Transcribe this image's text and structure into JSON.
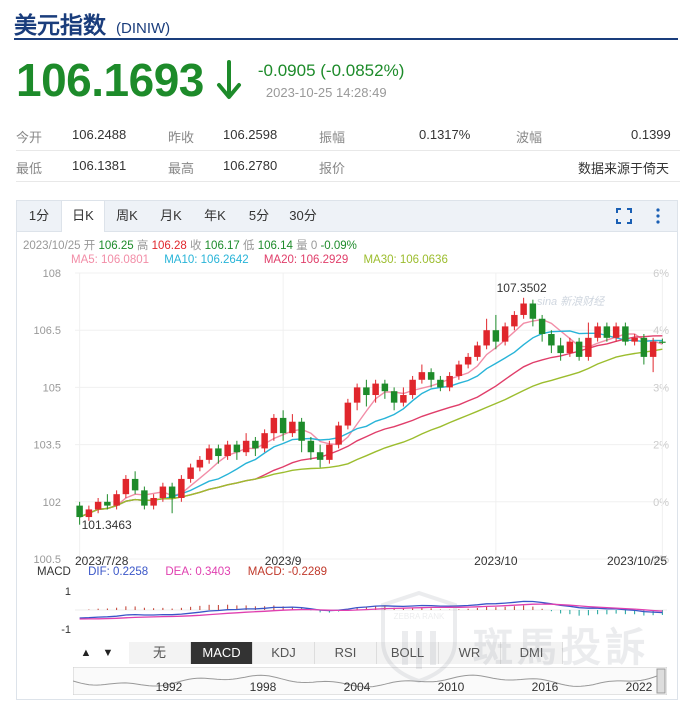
{
  "header": {
    "title": "美元指数",
    "code": "(DINIW)"
  },
  "quote": {
    "price": "106.1693",
    "change": "-0.0905 (-0.0852%)",
    "timestamp": "2023-10-25 14:28:49",
    "direction": "down",
    "color": "#1d8b2a"
  },
  "stats": {
    "open_label": "今开",
    "open": "106.2488",
    "prev_label": "昨收",
    "prev": "106.2598",
    "amp_label": "振幅",
    "amp": "0.1317%",
    "wave_label": "波幅",
    "wave": "0.1399",
    "low_label": "最低",
    "low": "106.1381",
    "high_label": "最高",
    "high": "106.2780",
    "quote_label": "报价",
    "source": "数据来源于倚天"
  },
  "tabs": [
    "1分",
    "日K",
    "周K",
    "月K",
    "年K",
    "5分",
    "30分"
  ],
  "active_tab": "日K",
  "info": {
    "date": "2023/10/25",
    "open_l": "开",
    "open": "106.25",
    "high_l": "高",
    "high": "106.28",
    "close_l": "收",
    "close": "106.17",
    "low_l": "低",
    "low": "106.14",
    "vol_l": "量",
    "vol": "0",
    "chg": "-0.09%"
  },
  "ma_legend": {
    "ma5": "MA5: 106.0801",
    "ma10": "MA10: 106.2642",
    "ma20": "MA20: 106.2929",
    "ma30": "MA30: 106.0636"
  },
  "colors": {
    "up": "#e0262c",
    "down": "#1d8b2a",
    "ma5": "#f28da7",
    "ma10": "#28b4d8",
    "ma20": "#e03e6a",
    "ma30": "#9cbd2e"
  },
  "annotations": {
    "max": "107.3502",
    "min": "101.3463",
    "watermark": "斑馬投訴",
    "zebra": "ZEBRA RANK",
    "sina": "sina 新浪财经"
  },
  "chart_data": {
    "type": "candlestick",
    "yticks": [
      "108",
      "106.5",
      "105",
      "103.5",
      "102",
      "100.5"
    ],
    "pct_ticks": [
      "6%",
      "4%",
      "3%",
      "2%",
      "0%",
      "-2%"
    ],
    "xticks": [
      "2023/7/28",
      "2023/9",
      "2023/10",
      "2023/10/25"
    ],
    "ylim": [
      100.5,
      108
    ],
    "candles": [
      [
        101.9,
        101.6,
        102.0,
        101.4
      ],
      [
        101.6,
        101.8,
        101.9,
        101.5
      ],
      [
        101.8,
        102.0,
        102.1,
        101.7
      ],
      [
        102.0,
        101.9,
        102.2,
        101.8
      ],
      [
        101.9,
        102.2,
        102.3,
        101.8
      ],
      [
        102.2,
        102.6,
        102.7,
        102.1
      ],
      [
        102.6,
        102.3,
        102.8,
        102.2
      ],
      [
        102.3,
        101.9,
        102.4,
        101.8
      ],
      [
        101.9,
        102.1,
        102.2,
        101.8
      ],
      [
        102.1,
        102.4,
        102.5,
        102.0
      ],
      [
        102.4,
        102.1,
        102.5,
        101.7
      ],
      [
        102.1,
        102.6,
        102.7,
        102.0
      ],
      [
        102.6,
        102.9,
        103.0,
        102.5
      ],
      [
        102.9,
        103.1,
        103.2,
        102.8
      ],
      [
        103.1,
        103.4,
        103.5,
        103.0
      ],
      [
        103.4,
        103.2,
        103.5,
        103.0
      ],
      [
        103.2,
        103.5,
        103.6,
        103.1
      ],
      [
        103.5,
        103.3,
        103.6,
        103.1
      ],
      [
        103.3,
        103.6,
        103.8,
        103.2
      ],
      [
        103.6,
        103.4,
        103.7,
        103.2
      ],
      [
        103.4,
        103.8,
        103.9,
        103.3
      ],
      [
        103.8,
        104.2,
        104.3,
        103.6
      ],
      [
        104.2,
        103.8,
        104.4,
        103.6
      ],
      [
        103.8,
        104.1,
        104.3,
        103.7
      ],
      [
        104.1,
        103.6,
        104.2,
        103.3
      ],
      [
        103.6,
        103.3,
        103.7,
        103.1
      ],
      [
        103.3,
        103.1,
        103.5,
        102.9
      ],
      [
        103.1,
        103.5,
        103.6,
        103.0
      ],
      [
        103.5,
        104.0,
        104.1,
        103.4
      ],
      [
        104.0,
        104.6,
        104.7,
        103.9
      ],
      [
        104.6,
        105.0,
        105.1,
        104.4
      ],
      [
        105.0,
        104.8,
        105.2,
        104.5
      ],
      [
        104.8,
        105.1,
        105.2,
        104.6
      ],
      [
        105.1,
        104.9,
        105.2,
        104.7
      ],
      [
        104.9,
        104.6,
        105.0,
        104.4
      ],
      [
        104.6,
        104.8,
        105.0,
        104.5
      ],
      [
        104.8,
        105.2,
        105.3,
        104.7
      ],
      [
        105.2,
        105.4,
        105.6,
        105.1
      ],
      [
        105.4,
        105.2,
        105.5,
        105.0
      ],
      [
        105.2,
        105.0,
        105.3,
        104.9
      ],
      [
        105.0,
        105.3,
        105.4,
        104.9
      ],
      [
        105.3,
        105.6,
        105.7,
        105.2
      ],
      [
        105.6,
        105.8,
        105.9,
        105.5
      ],
      [
        105.8,
        106.1,
        106.2,
        105.7
      ],
      [
        106.1,
        106.5,
        106.8,
        106.0
      ],
      [
        106.5,
        106.2,
        106.9,
        106.0
      ],
      [
        106.2,
        106.6,
        106.7,
        106.1
      ],
      [
        106.6,
        106.9,
        107.0,
        106.5
      ],
      [
        106.9,
        107.2,
        107.35,
        106.8
      ],
      [
        107.2,
        106.8,
        107.3,
        106.6
      ],
      [
        106.8,
        106.4,
        106.9,
        106.2
      ],
      [
        106.4,
        106.1,
        106.5,
        105.9
      ],
      [
        106.1,
        105.9,
        106.3,
        105.7
      ],
      [
        105.9,
        106.2,
        106.3,
        105.8
      ],
      [
        106.2,
        105.8,
        106.3,
        105.7
      ],
      [
        105.8,
        106.3,
        106.7,
        105.7
      ],
      [
        106.3,
        106.6,
        106.7,
        106.2
      ],
      [
        106.6,
        106.3,
        106.7,
        106.2
      ],
      [
        106.3,
        106.6,
        106.7,
        106.2
      ],
      [
        106.6,
        106.2,
        106.7,
        106.1
      ],
      [
        106.2,
        106.3,
        106.4,
        106.1
      ],
      [
        106.3,
        105.8,
        106.4,
        105.6
      ],
      [
        105.8,
        106.2,
        106.3,
        105.4
      ],
      [
        106.2,
        106.17,
        106.28,
        106.14
      ]
    ]
  },
  "macd": {
    "label": "MACD",
    "dif": "DIF: 0.2258",
    "dea": "DEA: 0.3403",
    "macd": "MACD: -0.2289",
    "yticks": [
      "1",
      "-1"
    ]
  },
  "indicators": [
    "无",
    "MACD",
    "KDJ",
    "RSI",
    "BOLL",
    "WR",
    "DMI"
  ],
  "active_indicator": "MACD",
  "navigator_years": [
    "1992",
    "1998",
    "2004",
    "2010",
    "2016",
    "2022"
  ]
}
